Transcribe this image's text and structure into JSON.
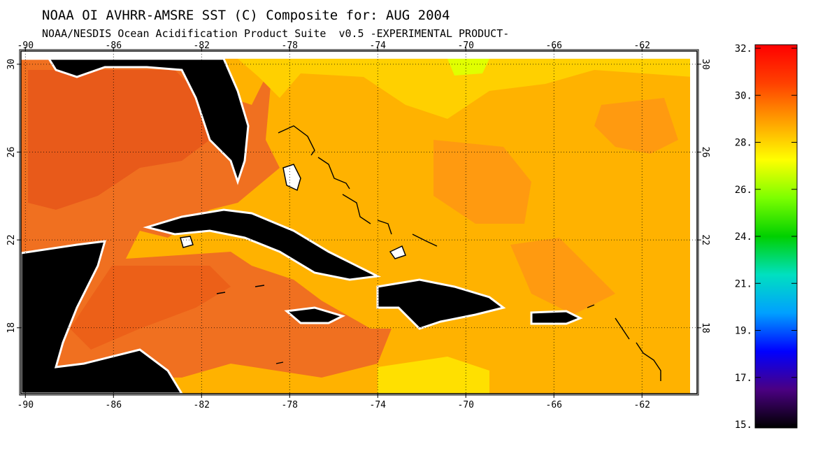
{
  "title": "NOAA OI AVHRR-AMSRE SST (C) Composite for: AUG 2004",
  "subtitle": "NOAA/NESDIS Ocean Acidification Product Suite  v0.5 -EXPERIMENTAL PRODUCT-",
  "map": {
    "lon_ticks": [
      -90,
      -86,
      -82,
      -78,
      -74,
      -70,
      -66,
      -62
    ],
    "lat_ticks": [
      30,
      26,
      22,
      18
    ],
    "lon_tick_labels": [
      "-90",
      "-86",
      "-82",
      "-78",
      "-74",
      "-70",
      "-66",
      "-62"
    ],
    "lat_tick_labels": [
      "30",
      "26",
      "22",
      "18"
    ],
    "lon_range": [
      -90.2,
      -59.5
    ],
    "lat_range": [
      30.6,
      15.0
    ],
    "grid": true,
    "grid_style": "dotted"
  },
  "colorbar": {
    "tick_labels": [
      "32.",
      "30.",
      "28.",
      "26.",
      "24.",
      "21.",
      "19.",
      "17.",
      "15."
    ],
    "tick_values": [
      32.0,
      30.0,
      28.0,
      26.0,
      24.0,
      21.0,
      19.0,
      17.0,
      15.0
    ],
    "range": [
      15.0,
      32.0
    ],
    "stops": [
      "#000000",
      "#4b0082",
      "#0000ff",
      "#00a0ff",
      "#00e0c0",
      "#00d000",
      "#7cff00",
      "#ffff00",
      "#ffa000",
      "#ff4000",
      "#ff0000"
    ]
  },
  "colors": {
    "land": "#000000",
    "coast_white": "#ffffff",
    "sst_warm": "#f07020",
    "sst_hot": "#e84a16",
    "sst_mid": "#ffb000",
    "sst_cool": "#ffd200",
    "sst_coolest": "#e8ff00"
  }
}
